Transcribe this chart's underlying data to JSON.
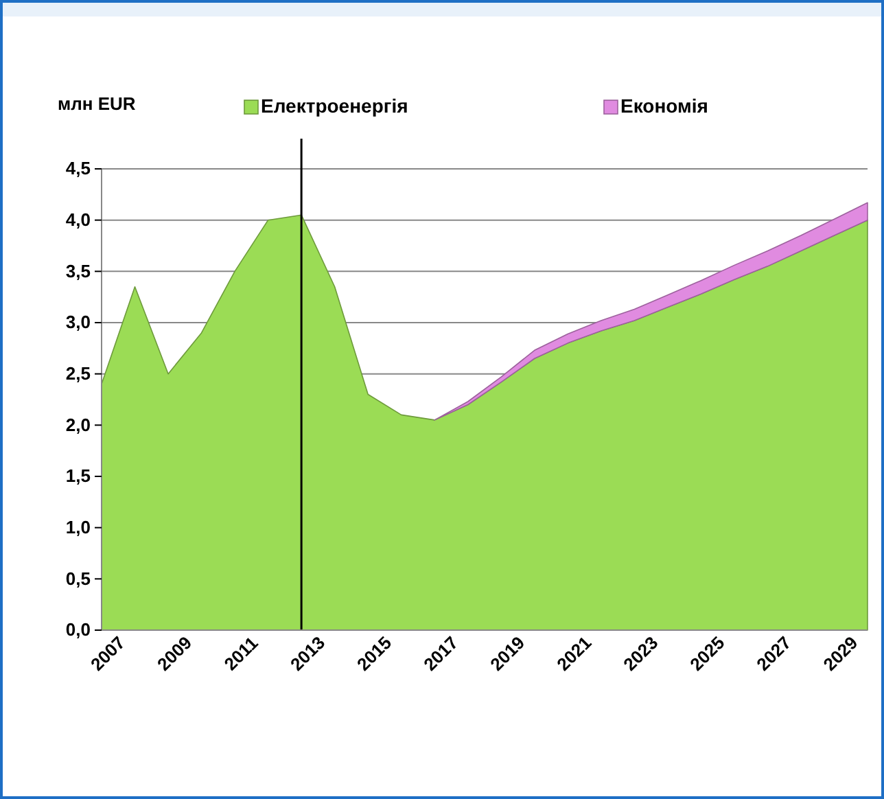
{
  "chart_data": {
    "type": "area",
    "stacked": true,
    "ylabel": "млн EUR",
    "x": [
      2007,
      2008,
      2009,
      2010,
      2011,
      2012,
      2013,
      2014,
      2015,
      2016,
      2017,
      2018,
      2019,
      2020,
      2021,
      2022,
      2023,
      2024,
      2025,
      2026,
      2027,
      2028,
      2029,
      2030
    ],
    "series": [
      {
        "name": "Електроенергія",
        "color": "#9bdc55",
        "values": [
          2.4,
          3.35,
          2.5,
          2.9,
          3.5,
          4.0,
          4.05,
          3.35,
          2.3,
          2.1,
          2.05,
          2.2,
          2.42,
          2.65,
          2.8,
          2.92,
          3.02,
          3.15,
          3.28,
          3.42,
          3.55,
          3.7,
          3.85,
          4.0
        ]
      },
      {
        "name": "Економія",
        "color": "#e08be0",
        "values": [
          null,
          null,
          null,
          null,
          null,
          null,
          null,
          null,
          null,
          null,
          0,
          0.03,
          0.05,
          0.08,
          0.09,
          0.1,
          0.11,
          0.12,
          0.13,
          0.14,
          0.15,
          0.15,
          0.16,
          0.17
        ]
      }
    ],
    "xlim": [
      2007,
      2030
    ],
    "xticks": [
      2007,
      2009,
      2011,
      2013,
      2015,
      2017,
      2019,
      2021,
      2023,
      2025,
      2027,
      2029
    ],
    "ylim": [
      0,
      4.5
    ],
    "yticks": [
      {
        "value": 0,
        "label": "0,0"
      },
      {
        "value": 0.5,
        "label": "0,5"
      },
      {
        "value": 1,
        "label": "1,0"
      },
      {
        "value": 1.5,
        "label": "1,5"
      },
      {
        "value": 2,
        "label": "2,0"
      },
      {
        "value": 2.5,
        "label": "2,5"
      },
      {
        "value": 3,
        "label": "3,0"
      },
      {
        "value": 3.5,
        "label": "3,5"
      },
      {
        "value": 4,
        "label": "4,0"
      },
      {
        "value": 4.5,
        "label": "4,5"
      }
    ],
    "grid": "y",
    "legend": "top",
    "ref_lines": [
      {
        "axis": "x",
        "value": 2013,
        "color": "#000000"
      }
    ]
  }
}
